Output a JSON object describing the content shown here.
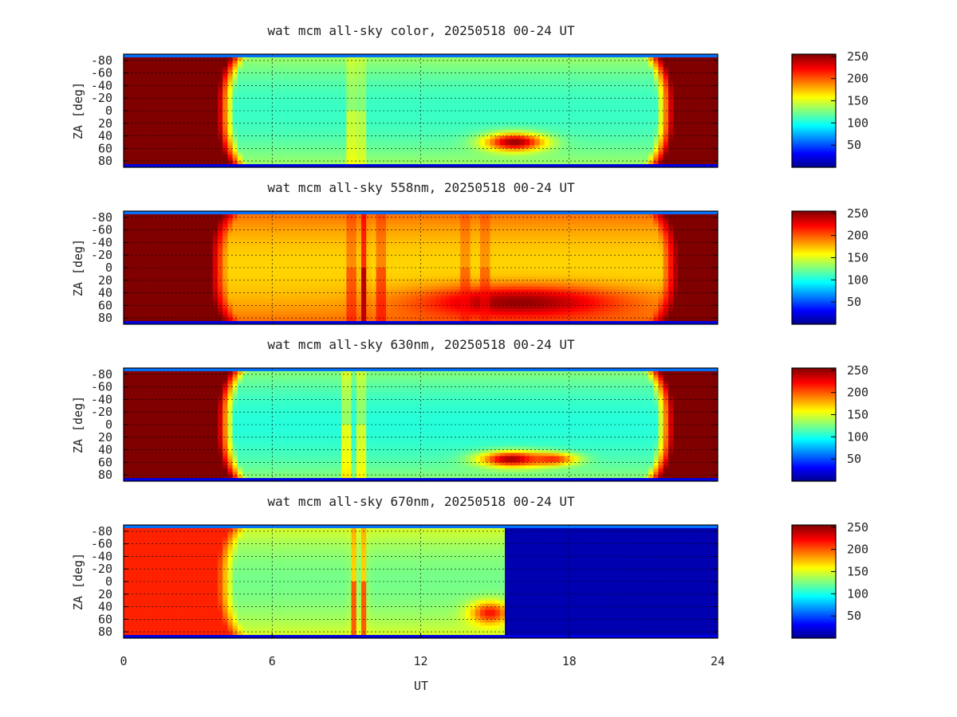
{
  "chart_data": [
    {
      "type": "heatmap",
      "title": "wat mcm all-sky color, 20250518 00-24 UT",
      "xlabel": "",
      "ylabel": "ZA [deg]",
      "x_range": [
        0,
        24
      ],
      "y_range": [
        -90,
        90
      ],
      "y_ticks": [
        "-80",
        "-60",
        "-40",
        "-20",
        "0",
        "20",
        "40",
        "60",
        "80"
      ],
      "x_ticks": [],
      "colorbar": {
        "min": 0,
        "max": 255,
        "ticks": [
          "50",
          "100",
          "150",
          "200",
          "250"
        ]
      },
      "grid": true,
      "features": {
        "night_start": 4.5,
        "night_end": 21.5,
        "daylight_value": 255,
        "night_value": 110,
        "blobs": [
          {
            "t": 15.8,
            "za": 50,
            "value": 250,
            "width_t": 1.2,
            "width_za": 14
          }
        ],
        "streaks": [
          {
            "t": 9.2,
            "value": 180
          },
          {
            "t": 9.6,
            "value": 170
          }
        ]
      }
    },
    {
      "type": "heatmap",
      "title": "wat mcm all-sky 558nm, 20250518 00-24 UT",
      "xlabel": "",
      "ylabel": "ZA [deg]",
      "x_range": [
        0,
        24
      ],
      "y_range": [
        -90,
        90
      ],
      "y_ticks": [
        "-80",
        "-60",
        "-40",
        "-20",
        "0",
        "20",
        "40",
        "60",
        "80"
      ],
      "x_ticks": [],
      "colorbar": {
        "min": 0,
        "max": 255,
        "ticks": [
          "50",
          "100",
          "150",
          "200",
          "250"
        ]
      },
      "grid": true,
      "features": {
        "night_start": 4.2,
        "night_end": 21.7,
        "daylight_value": 255,
        "night_value": 170,
        "blobs": [
          {
            "t": 16,
            "za": 55,
            "value": 250,
            "width_t": 4,
            "width_za": 25
          }
        ],
        "streaks": [
          {
            "t": 9.2,
            "value": 230
          },
          {
            "t": 9.7,
            "value": 240
          },
          {
            "t": 10.4,
            "value": 235
          },
          {
            "t": 13.8,
            "value": 220
          },
          {
            "t": 14.6,
            "value": 220
          }
        ]
      }
    },
    {
      "type": "heatmap",
      "title": "wat mcm all-sky 630nm, 20250518 00-24 UT",
      "xlabel": "",
      "ylabel": "ZA [deg]",
      "x_range": [
        0,
        24
      ],
      "y_range": [
        -90,
        90
      ],
      "y_ticks": [
        "-80",
        "-60",
        "-40",
        "-20",
        "0",
        "20",
        "40",
        "60",
        "80"
      ],
      "x_ticks": [],
      "colorbar": {
        "min": 0,
        "max": 255,
        "ticks": [
          "50",
          "100",
          "150",
          "200",
          "250"
        ]
      },
      "grid": true,
      "features": {
        "night_start": 4.5,
        "night_end": 21.5,
        "daylight_value": 255,
        "night_value": 105,
        "blobs": [
          {
            "t": 15.7,
            "za": 55,
            "value": 250,
            "width_t": 1.3,
            "width_za": 12
          },
          {
            "t": 17.3,
            "za": 55,
            "value": 215,
            "width_t": 1,
            "width_za": 10
          }
        ],
        "streaks": [
          {
            "t": 9.0,
            "value": 200
          },
          {
            "t": 9.6,
            "value": 190
          }
        ]
      }
    },
    {
      "type": "heatmap",
      "title": "wat mcm all-sky 670nm, 20250518 00-24 UT",
      "xlabel": "UT",
      "ylabel": "ZA [deg]",
      "x_range": [
        0,
        24
      ],
      "y_range": [
        -90,
        90
      ],
      "y_ticks": [
        "-80",
        "-60",
        "-40",
        "-20",
        "0",
        "20",
        "40",
        "60",
        "80"
      ],
      "x_ticks": [
        "0",
        "6",
        "12",
        "18",
        "24"
      ],
      "colorbar": {
        "min": 0,
        "max": 255,
        "ticks": [
          "50",
          "100",
          "150",
          "200",
          "250"
        ]
      },
      "grid": true,
      "features": {
        "night_start": 4.5,
        "night_end": 15.3,
        "daylight_value": 215,
        "night_value": 125,
        "after_end_value": 12,
        "blobs": [
          {
            "t": 14.8,
            "za": 50,
            "value": 220,
            "width_t": 0.8,
            "width_za": 18
          }
        ],
        "streaks": [
          {
            "t": 9.3,
            "value": 200
          },
          {
            "t": 9.7,
            "value": 200
          }
        ]
      }
    }
  ]
}
